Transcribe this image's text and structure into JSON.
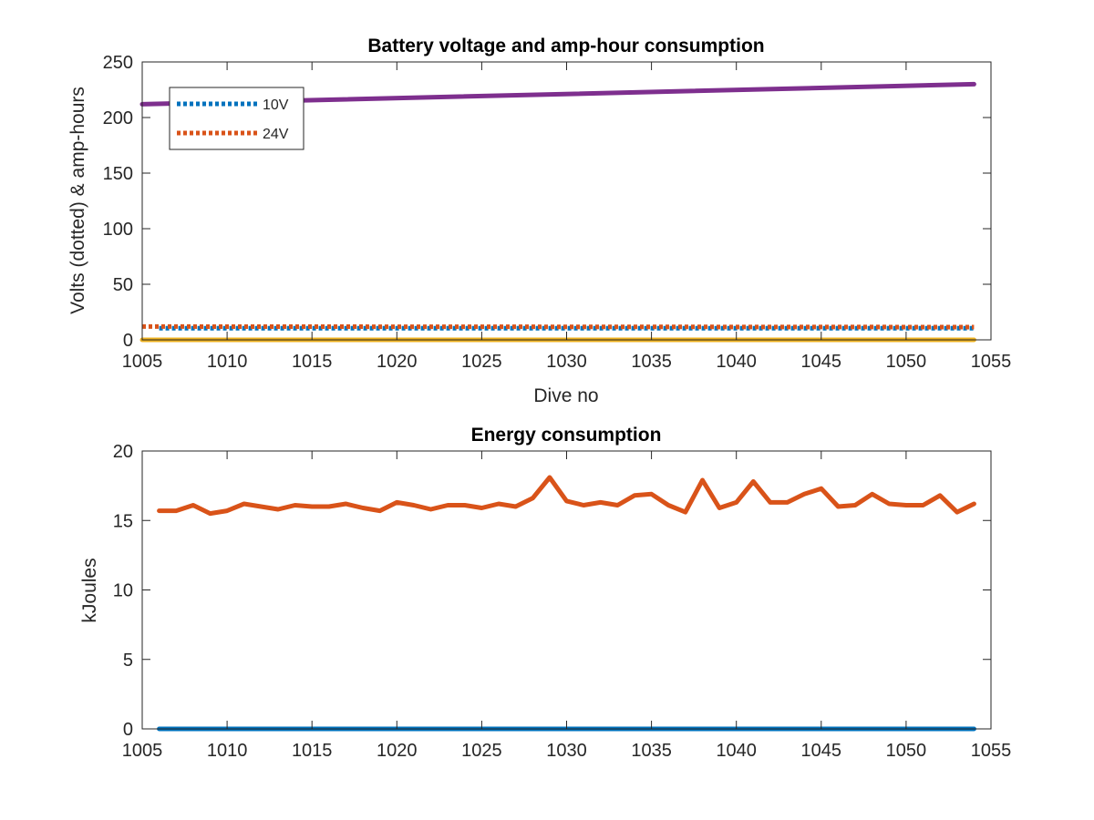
{
  "chart_data": [
    {
      "type": "line",
      "title": "Battery voltage and amp-hour consumption",
      "xlabel": "Dive no",
      "ylabel": "Volts (dotted) & amp-hours",
      "xlim": [
        1005,
        1055
      ],
      "ylim": [
        0,
        250
      ],
      "xticks": [
        1005,
        1010,
        1015,
        1020,
        1025,
        1030,
        1035,
        1040,
        1045,
        1050,
        1055
      ],
      "yticks": [
        0,
        50,
        100,
        150,
        200,
        250
      ],
      "grid": false,
      "legend": {
        "placement": "top-left",
        "entries": [
          "10V",
          "24V"
        ]
      },
      "series": [
        {
          "name": "10V",
          "style": "dotted",
          "color": "#0072BD",
          "x": [
            1006,
            1054
          ],
          "y": [
            10.5,
            10.5
          ]
        },
        {
          "name": "24V",
          "style": "dotted",
          "color": "#D95319",
          "x": [
            1005,
            1054
          ],
          "y": [
            12,
            11.5
          ]
        },
        {
          "style": "solid",
          "color": "#EDB120",
          "x": [
            1005,
            1054
          ],
          "y": [
            0,
            0
          ]
        },
        {
          "style": "solid",
          "color": "#7E2F8E",
          "x": [
            1005,
            1054
          ],
          "y": [
            212,
            230
          ]
        }
      ]
    },
    {
      "type": "line",
      "title": "Energy consumption",
      "xlabel": "",
      "ylabel": "kJoules",
      "xlim": [
        1005,
        1055
      ],
      "ylim": [
        0,
        20
      ],
      "xticks": [
        1005,
        1010,
        1015,
        1020,
        1025,
        1030,
        1035,
        1040,
        1045,
        1050,
        1055
      ],
      "yticks": [
        0,
        5,
        10,
        15,
        20
      ],
      "grid": false,
      "series": [
        {
          "style": "solid",
          "color": "#0072BD",
          "x": [
            1006,
            1054
          ],
          "y": [
            0,
            0
          ]
        },
        {
          "style": "solid",
          "color": "#D95319",
          "x": [
            1006,
            1007,
            1008,
            1009,
            1010,
            1011,
            1012,
            1013,
            1014,
            1015,
            1016,
            1017,
            1018,
            1019,
            1020,
            1021,
            1022,
            1023,
            1024,
            1025,
            1026,
            1027,
            1028,
            1029,
            1030,
            1031,
            1032,
            1033,
            1034,
            1035,
            1036,
            1037,
            1038,
            1039,
            1040,
            1041,
            1042,
            1043,
            1044,
            1045,
            1046,
            1047,
            1048,
            1049,
            1050,
            1051,
            1052,
            1053,
            1054
          ],
          "y": [
            15.7,
            15.7,
            16.1,
            15.5,
            15.7,
            16.2,
            16.0,
            15.8,
            16.1,
            16.0,
            16.0,
            16.2,
            15.9,
            15.7,
            16.3,
            16.1,
            15.8,
            16.1,
            16.1,
            15.9,
            16.2,
            16.0,
            16.6,
            18.1,
            16.4,
            16.1,
            16.3,
            16.1,
            16.8,
            16.9,
            16.1,
            15.6,
            17.9,
            15.9,
            16.3,
            17.8,
            16.3,
            16.3,
            16.9,
            17.3,
            16.0,
            16.1,
            16.9,
            16.2,
            16.1,
            16.1,
            16.8,
            15.6,
            16.2
          ]
        }
      ]
    }
  ]
}
